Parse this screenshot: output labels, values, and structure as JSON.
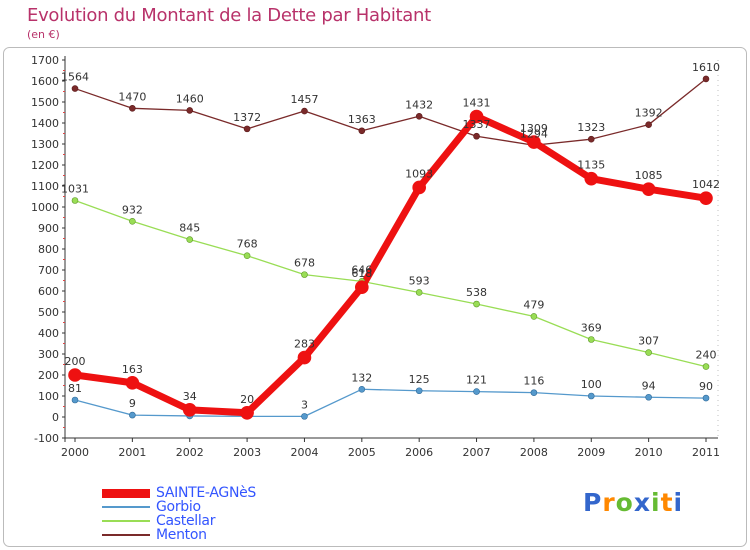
{
  "title": "Evolution du Montant de la Dette par Habitant",
  "subtitle": "(en €)",
  "logo_text": "Proxiti",
  "chart_data": {
    "type": "line",
    "title": "Evolution du Montant de la Dette par Habitant",
    "subtitle": "(en €)",
    "categories": [
      "2000",
      "2001",
      "2002",
      "2003",
      "2004",
      "2005",
      "2006",
      "2007",
      "2008",
      "2009",
      "2010",
      "2011"
    ],
    "ylim": [
      -100,
      1700
    ],
    "yticks": [
      -100,
      0,
      100,
      200,
      300,
      400,
      500,
      600,
      700,
      800,
      900,
      1000,
      1100,
      1200,
      1300,
      1400,
      1500,
      1600,
      1700
    ],
    "grid": false,
    "legend_position": "bottom-left",
    "series": [
      {
        "name": "Menton",
        "color": "#7a2a2a",
        "values": [
          1564,
          1470,
          1460,
          1372,
          1457,
          1363,
          1432,
          1337,
          1294,
          1323,
          1392,
          1610
        ]
      },
      {
        "name": "Castellar",
        "color": "#99dd55",
        "values": [
          1031,
          932,
          845,
          768,
          678,
          646,
          593,
          538,
          479,
          369,
          307,
          240
        ]
      },
      {
        "name": "Gorbio",
        "color": "#5599cc",
        "values": [
          81,
          9,
          5,
          3,
          3,
          132,
          125,
          121,
          116,
          100,
          94,
          90
        ]
      },
      {
        "name": "SAINTE-AGNèS",
        "color": "#ee1111",
        "values": [
          200,
          163,
          34,
          20,
          283,
          618,
          1093,
          1431,
          1309,
          1135,
          1085,
          1042
        ]
      }
    ],
    "data_labels": {
      "Menton": [
        "1564",
        "1470",
        "1460",
        "1372",
        "1457",
        "1363",
        "1432",
        "1337",
        "1294",
        "1323",
        "1392",
        "1610"
      ],
      "Castellar": [
        "1031",
        "932",
        "845",
        "768",
        "678",
        "646",
        "593",
        "538",
        "479",
        "369",
        "307",
        "240"
      ],
      "Gorbio": [
        "81",
        "9",
        "",
        "",
        "3",
        "132",
        "125",
        "121",
        "116",
        "100",
        "94",
        "90"
      ],
      "SAINTE-AGNèS": [
        "200",
        "163",
        "34",
        "20",
        "283",
        "618",
        "1093",
        "1431",
        "1309",
        "1135",
        "1085",
        "1042"
      ]
    }
  }
}
